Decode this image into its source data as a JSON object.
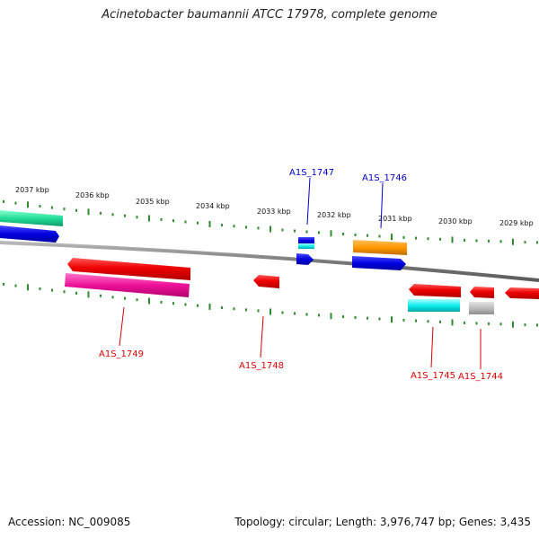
{
  "title": "Acinetobacter baumannii ATCC 17978, complete genome",
  "footer": {
    "accession": "Accession: NC_009085",
    "summary": "Topology: circular; Length: 3,976,747 bp; Genes: 3,435"
  },
  "colors": {
    "backbone": "#7a7a7a",
    "tick": "#2e8b2e",
    "label_forward": "#0000cc",
    "label_reverse": "#dd0000"
  },
  "axis": {
    "unit": "kbp",
    "labels": [
      "2037 kbp",
      "2036 kbp",
      "2035 kbp",
      "2034 kbp",
      "2033 kbp",
      "2032 kbp",
      "2031 kbp",
      "2030 kbp",
      "2029 kbp"
    ]
  },
  "gene_labels": [
    {
      "text": "A1S_1747",
      "strand": "forward"
    },
    {
      "text": "A1S_1746",
      "strand": "forward"
    },
    {
      "text": "A1S_1749",
      "strand": "reverse"
    },
    {
      "text": "A1S_1748",
      "strand": "reverse"
    },
    {
      "text": "A1S_1745",
      "strand": "reverse"
    },
    {
      "text": "A1S_1744",
      "strand": "reverse"
    }
  ]
}
